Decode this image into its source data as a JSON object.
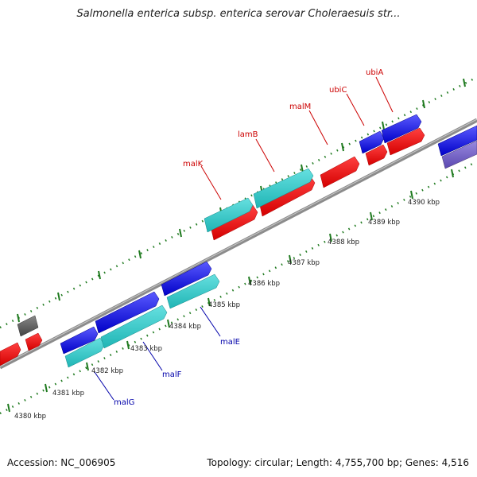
{
  "title": "Salmonella enterica subsp. enterica serovar Choleraesuis str...",
  "footer": {
    "accession": "Accession: NC_006905",
    "summary": "Topology: circular; Length: 4,755,700 bp; Genes: 4,516"
  },
  "colors": {
    "backbone": "#8c8c8c",
    "tick": "#1f7a1f",
    "forward_label": "#cc0000",
    "reverse_label": "#0000aa",
    "blue_gene": "#1a1adf",
    "cyan_gene": "#33cccc",
    "red_gene": "#ee1111",
    "gray_gene": "#666666",
    "purple_gene": "#7766cc"
  },
  "scale_labels": [
    "4380 kbp",
    "4381 kbp",
    "4382 kbp",
    "4383 kbp",
    "4384 kbp",
    "4385 kbp",
    "4386 kbp",
    "4387 kbp",
    "4388 kbp",
    "4389 kbp",
    "4390 kbp"
  ],
  "forward_gene_labels": [
    "malK",
    "lamB",
    "malM",
    "ubiC",
    "ubiA"
  ],
  "reverse_gene_labels": [
    "malE",
    "malF",
    "malG"
  ]
}
